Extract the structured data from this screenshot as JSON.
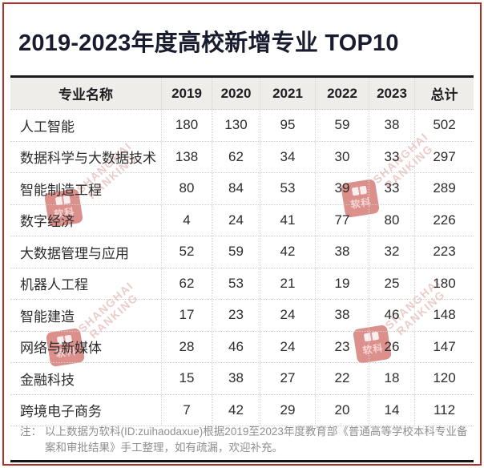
{
  "title": "2019-2023年度高校新增专业 TOP10",
  "chart_data": {
    "type": "table",
    "title": "2019-2023年度高校新增专业 TOP10",
    "columns": [
      "专业名称",
      "2019",
      "2020",
      "2021",
      "2022",
      "2023",
      "总计"
    ],
    "rows": [
      [
        "人工智能",
        180,
        130,
        95,
        59,
        38,
        502
      ],
      [
        "数据科学与大数据技术",
        138,
        62,
        34,
        30,
        33,
        297
      ],
      [
        "智能制造工程",
        80,
        84,
        53,
        39,
        33,
        289
      ],
      [
        "数字经济",
        4,
        24,
        41,
        77,
        80,
        226
      ],
      [
        "大数据管理与应用",
        52,
        59,
        42,
        38,
        32,
        223
      ],
      [
        "机器人工程",
        62,
        53,
        21,
        19,
        25,
        180
      ],
      [
        "智能建造",
        17,
        23,
        24,
        38,
        46,
        148
      ],
      [
        "网络与新媒体",
        28,
        46,
        24,
        23,
        26,
        147
      ],
      [
        "金融科技",
        15,
        38,
        27,
        22,
        18,
        120
      ],
      [
        "跨境电子商务",
        7,
        42,
        29,
        20,
        14,
        112
      ]
    ]
  },
  "note": {
    "prefix": "注：",
    "text": "以上数据为软科(ID:zuihaodaxue)根据2019至2023年度教育部《普通高等学校本科专业备案和审批结果》手工整理，如有疏漏，欢迎补充。"
  },
  "watermark": {
    "logo_text": "软科",
    "brand_line1": "SHANGHAI",
    "brand_line2": "RANKING"
  },
  "colors": {
    "accent_red": "#ae3129",
    "title_text": "#191c2e",
    "header_bg": "#efede9",
    "body_text": "#2c2c2c",
    "note_text": "#8f8f8f"
  }
}
